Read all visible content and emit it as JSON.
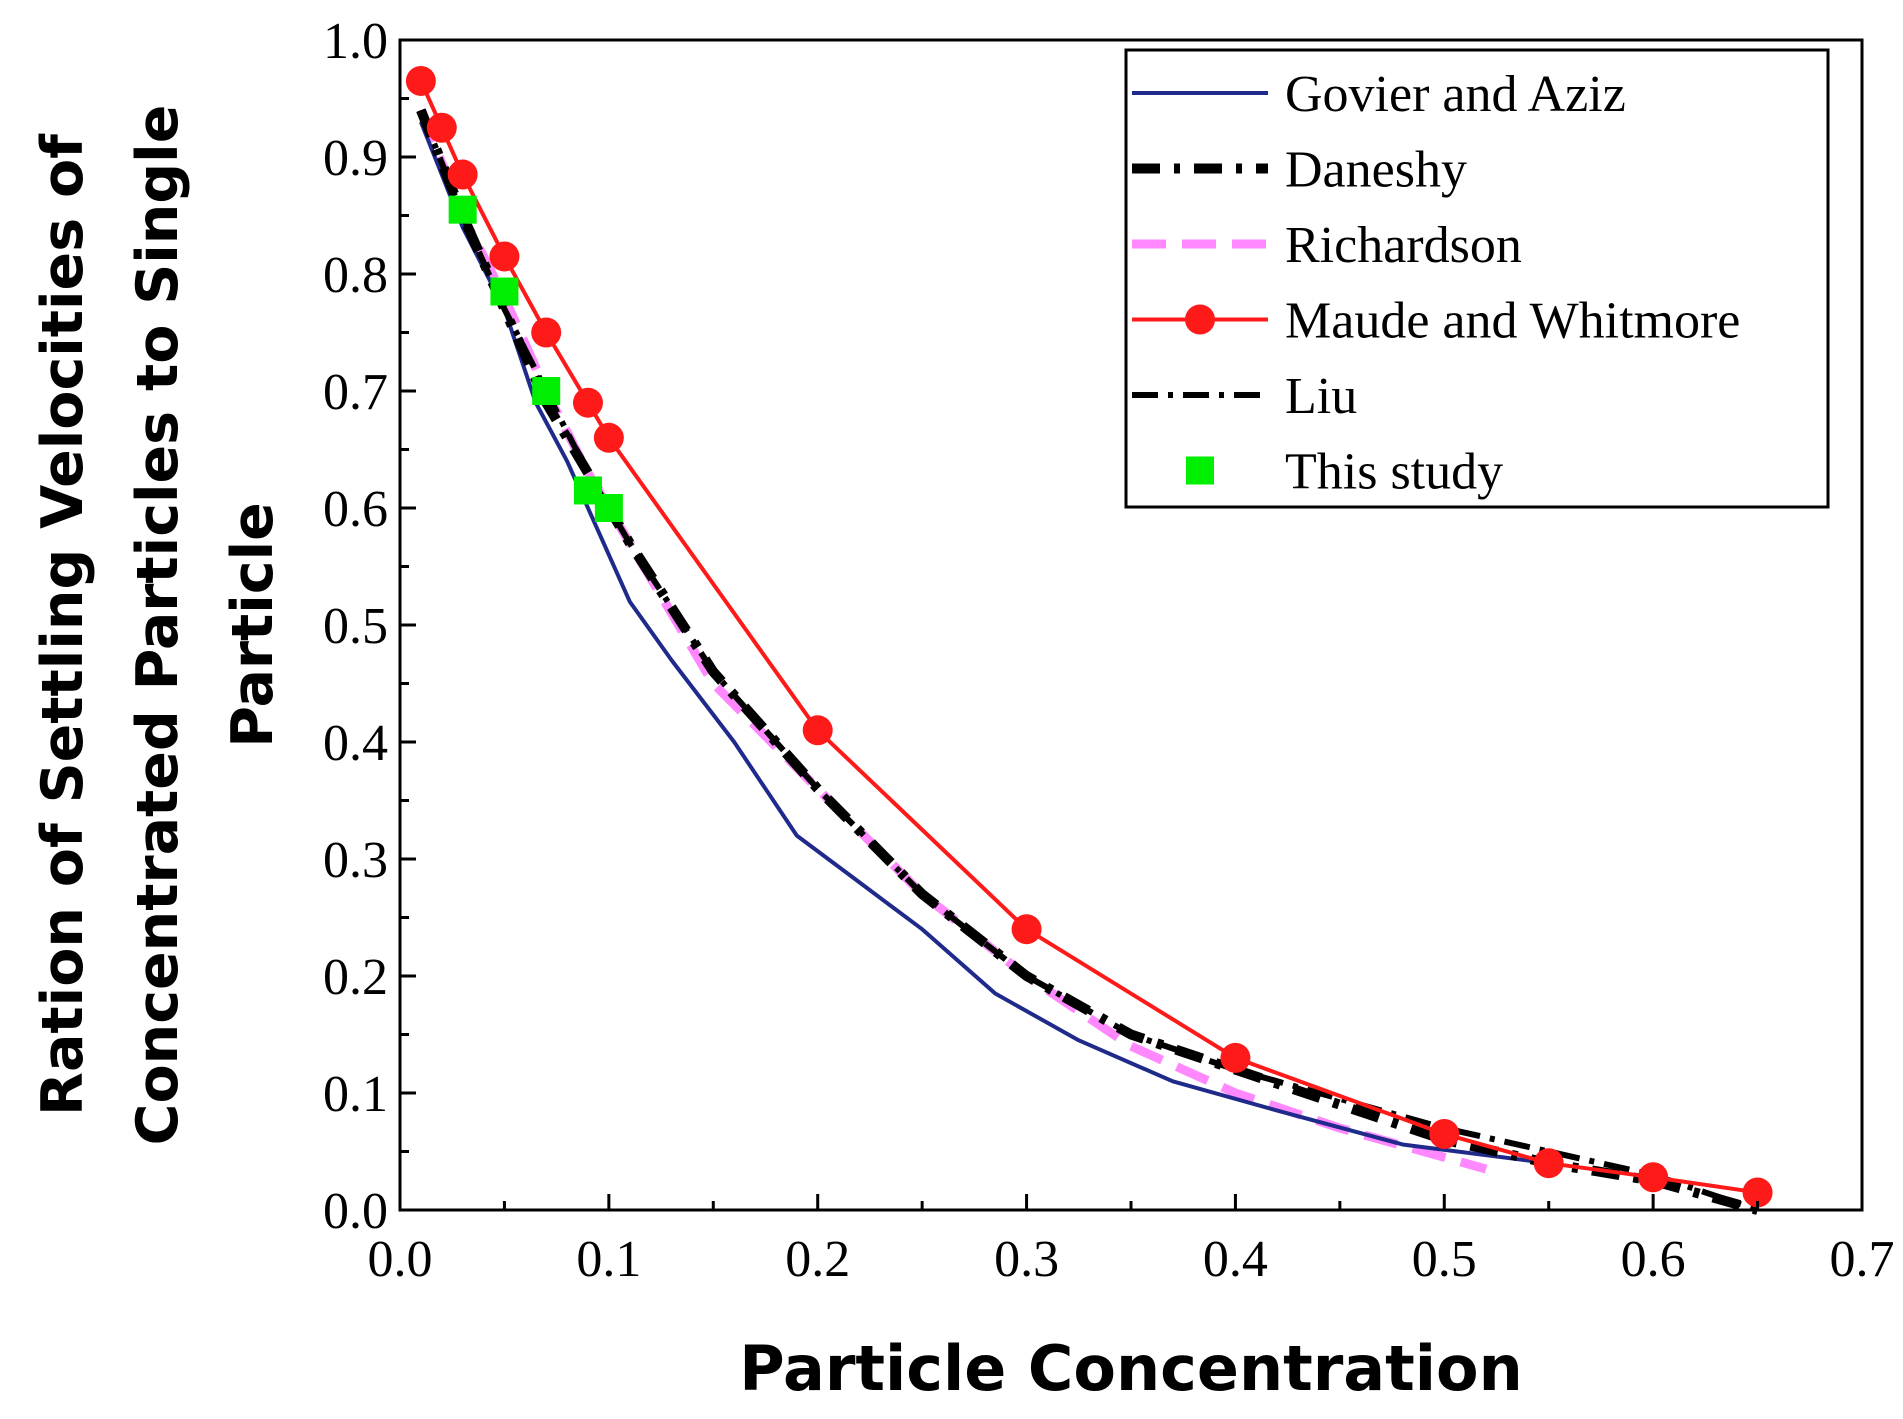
{
  "chart_data": {
    "type": "line",
    "title": "",
    "xlabel": "Particle Concentration",
    "ylabel_lines": [
      "Ration of Settling Velocities of",
      "Concentrated Particles to Single",
      "Particle"
    ],
    "xlim": [
      0.0,
      0.7
    ],
    "ylim": [
      0.0,
      1.0
    ],
    "x_ticks": [
      0.0,
      0.1,
      0.2,
      0.3,
      0.4,
      0.5,
      0.6,
      0.7
    ],
    "x_tick_labels": [
      "0.0",
      "0.1",
      "0.2",
      "0.3",
      "0.4",
      "0.5",
      "0.6",
      "0.7"
    ],
    "y_ticks": [
      0.0,
      0.1,
      0.2,
      0.3,
      0.4,
      0.5,
      0.6,
      0.7,
      0.8,
      0.9,
      1.0
    ],
    "y_tick_labels": [
      "0.0",
      "0.1",
      "0.2",
      "0.3",
      "0.4",
      "0.5",
      "0.6",
      "0.7",
      "0.8",
      "0.9",
      "1.0"
    ],
    "grid": false,
    "legend_position": "top-right",
    "series": [
      {
        "name": "Govier and Aziz",
        "color": "#1f2a8a",
        "line": "solid",
        "marker": "none",
        "x": [
          0.01,
          0.03,
          0.05,
          0.065,
          0.08,
          0.095,
          0.11,
          0.13,
          0.16,
          0.19,
          0.22,
          0.25,
          0.285,
          0.325,
          0.37,
          0.42,
          0.48,
          0.55
        ],
        "y": [
          0.93,
          0.84,
          0.77,
          0.69,
          0.64,
          0.58,
          0.52,
          0.47,
          0.4,
          0.32,
          0.28,
          0.24,
          0.185,
          0.145,
          0.11,
          0.085,
          0.056,
          0.04
        ]
      },
      {
        "name": "Daneshy",
        "color": "#000000",
        "line": "dash-dot-heavy",
        "marker": "none",
        "x": [
          0.01,
          0.03,
          0.05,
          0.07,
          0.09,
          0.11,
          0.15,
          0.2,
          0.25,
          0.3,
          0.35,
          0.4,
          0.45,
          0.5,
          0.55,
          0.6,
          0.65
        ],
        "y": [
          0.94,
          0.85,
          0.77,
          0.69,
          0.63,
          0.57,
          0.46,
          0.36,
          0.27,
          0.2,
          0.15,
          0.12,
          0.09,
          0.06,
          0.04,
          0.025,
          0.0
        ]
      },
      {
        "name": "Richardson",
        "color": "#ff88ff",
        "line": "dashed",
        "marker": "none",
        "x": [
          0.01,
          0.03,
          0.05,
          0.07,
          0.09,
          0.11,
          0.15,
          0.2,
          0.25,
          0.3,
          0.35,
          0.4,
          0.45,
          0.5,
          0.52
        ],
        "y": [
          0.94,
          0.85,
          0.78,
          0.7,
          0.63,
          0.57,
          0.45,
          0.36,
          0.27,
          0.2,
          0.14,
          0.1,
          0.07,
          0.045,
          0.035
        ]
      },
      {
        "name": "Maude and Whitmore",
        "color": "#ff1a1a",
        "line": "solid",
        "marker": "circle",
        "x": [
          0.01,
          0.02,
          0.03,
          0.05,
          0.07,
          0.09,
          0.1,
          0.2,
          0.3,
          0.4,
          0.5,
          0.55,
          0.6,
          0.65
        ],
        "y": [
          0.965,
          0.925,
          0.885,
          0.815,
          0.75,
          0.69,
          0.66,
          0.41,
          0.24,
          0.13,
          0.065,
          0.04,
          0.028,
          0.015
        ]
      },
      {
        "name": "Liu",
        "color": "#000000",
        "line": "dash-dot",
        "marker": "none",
        "x": [
          0.01,
          0.03,
          0.05,
          0.07,
          0.09,
          0.11,
          0.15,
          0.2,
          0.25,
          0.3,
          0.35,
          0.4,
          0.45,
          0.5,
          0.55,
          0.6,
          0.65
        ],
        "y": [
          0.94,
          0.85,
          0.77,
          0.7,
          0.63,
          0.57,
          0.46,
          0.36,
          0.27,
          0.2,
          0.15,
          0.12,
          0.095,
          0.07,
          0.05,
          0.03,
          0.0
        ]
      },
      {
        "name": "This study",
        "color": "#00ee00",
        "line": "none",
        "marker": "square",
        "x": [
          0.03,
          0.05,
          0.07,
          0.09,
          0.1
        ],
        "y": [
          0.855,
          0.785,
          0.7,
          0.615,
          0.6
        ]
      }
    ]
  }
}
